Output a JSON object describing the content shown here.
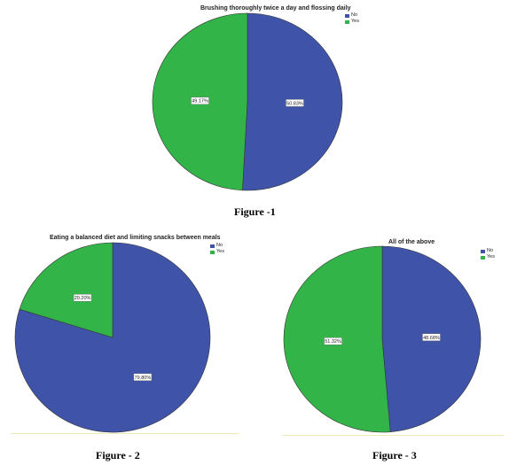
{
  "colors": {
    "no": "#3f54a8",
    "yes": "#33b449",
    "stroke": "#333333"
  },
  "legend_labels": [
    "No",
    "Yes"
  ],
  "captions": [
    "Figure -1",
    "Figure - 2",
    "Figure - 3"
  ],
  "chart_data": [
    {
      "type": "pie",
      "title": "Brushing thoroughly twice a day and flossing daily",
      "categories": [
        "No",
        "Yes"
      ],
      "values": [
        50.83,
        49.17
      ],
      "labels": [
        "50.83%",
        "49.17%"
      ],
      "legend": "top-right"
    },
    {
      "type": "pie",
      "title": "Eating a balanced diet and limiting snacks between meals",
      "categories": [
        "No",
        "Yes"
      ],
      "values": [
        79.8,
        20.2
      ],
      "labels": [
        "79.80%",
        "20.20%"
      ],
      "legend": "top-right"
    },
    {
      "type": "pie",
      "title": "All of the above",
      "categories": [
        "No",
        "Yes"
      ],
      "values": [
        48.68,
        51.32
      ],
      "labels": [
        "48.68%",
        "51.32%"
      ],
      "legend": "top-right"
    }
  ]
}
